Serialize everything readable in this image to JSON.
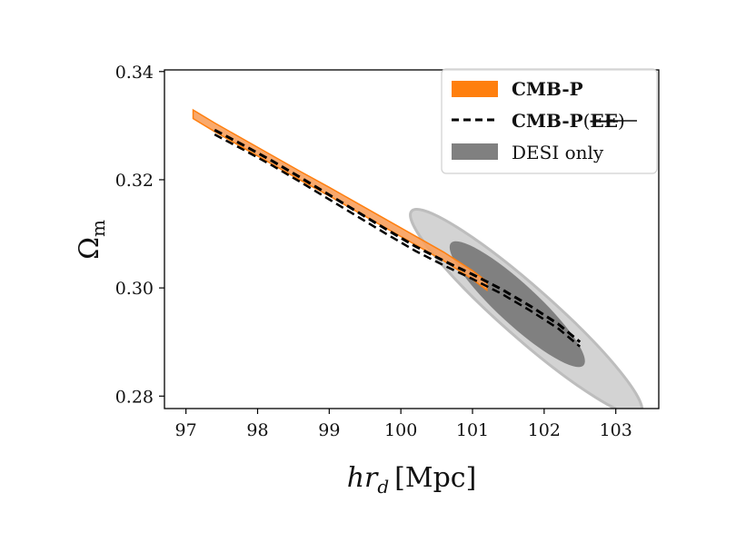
{
  "chart_data": {
    "type": "scatter",
    "title": "",
    "xlabel": "hr_d [Mpc]",
    "xlabel_parts": {
      "var": "hr",
      "sub": "d",
      "unit": "[Mpc]"
    },
    "ylabel": "Ω_m",
    "ylabel_parts": {
      "var": "Ω",
      "sub": "m"
    },
    "xlim": [
      96.7,
      103.6
    ],
    "ylim": [
      0.2777,
      0.3403
    ],
    "xticks": [
      97,
      98,
      99,
      100,
      101,
      102,
      103
    ],
    "xtick_labels": [
      "97",
      "98",
      "99",
      "100",
      "101",
      "102",
      "103"
    ],
    "yticks": [
      0.28,
      0.3,
      0.32,
      0.34
    ],
    "ytick_labels": [
      "0.28",
      "0.30",
      "0.32",
      "0.34"
    ],
    "legend_location": "upper right",
    "series": [
      {
        "name": "CMB-P",
        "kind": "band",
        "color": "#ff7f0e",
        "x": [
          97.1,
          97.4,
          97.8,
          98.2,
          98.6,
          99.0,
          99.4,
          99.8,
          100.2,
          100.6,
          101.0,
          101.2
        ],
        "y": [
          0.3321,
          0.3297,
          0.3267,
          0.3237,
          0.3207,
          0.3178,
          0.3148,
          0.3118,
          0.3088,
          0.3058,
          0.3024,
          0.3004
        ],
        "half_width": 0.0008
      },
      {
        "name": "CMB-P(EE)",
        "kind": "dashed-line",
        "color": "#000000",
        "x": [
          97.4,
          97.8,
          98.2,
          98.6,
          99.0,
          99.4,
          99.8,
          100.2,
          100.6,
          101.0,
          101.4,
          101.8,
          102.2,
          102.5
        ],
        "y": [
          0.3292,
          0.3264,
          0.3235,
          0.3204,
          0.3172,
          0.314,
          0.3108,
          0.3077,
          0.305,
          0.3025,
          0.2998,
          0.2967,
          0.2933,
          0.29
        ]
      },
      {
        "name": "DESI only",
        "kind": "contours",
        "levels": [
          {
            "level": "95%",
            "color": "#d3d3d3",
            "edge": "#bdbdbd",
            "center": [
              101.75,
              0.2955
            ],
            "major_ends": [
              [
                100.15,
                0.3142
              ],
              [
                103.35,
                0.2768
              ]
            ],
            "minor_halfwidth": 0.26
          },
          {
            "level": "68%",
            "color": "#808080",
            "center": [
              101.62,
              0.297
            ],
            "major_ends": [
              [
                100.7,
                0.3083
              ],
              [
                102.55,
                0.2857
              ]
            ],
            "minor_halfwidth": 0.21
          }
        ]
      }
    ],
    "legend": [
      {
        "label": "CMB-P",
        "bold": true,
        "symbol": "orange-patch"
      },
      {
        "label_main": "CMB-P",
        "label_paren": "EE",
        "bold": true,
        "strikethrough_part": "EE",
        "symbol": "dashed-line"
      },
      {
        "label": "DESI only",
        "bold": false,
        "symbol": "gray-patch"
      }
    ],
    "colors": {
      "orange": "#ff7f0e",
      "orange_fill": "#f8a05c",
      "gray_light": "#d3d3d3",
      "gray_dark": "#808080",
      "black": "#000000"
    }
  }
}
